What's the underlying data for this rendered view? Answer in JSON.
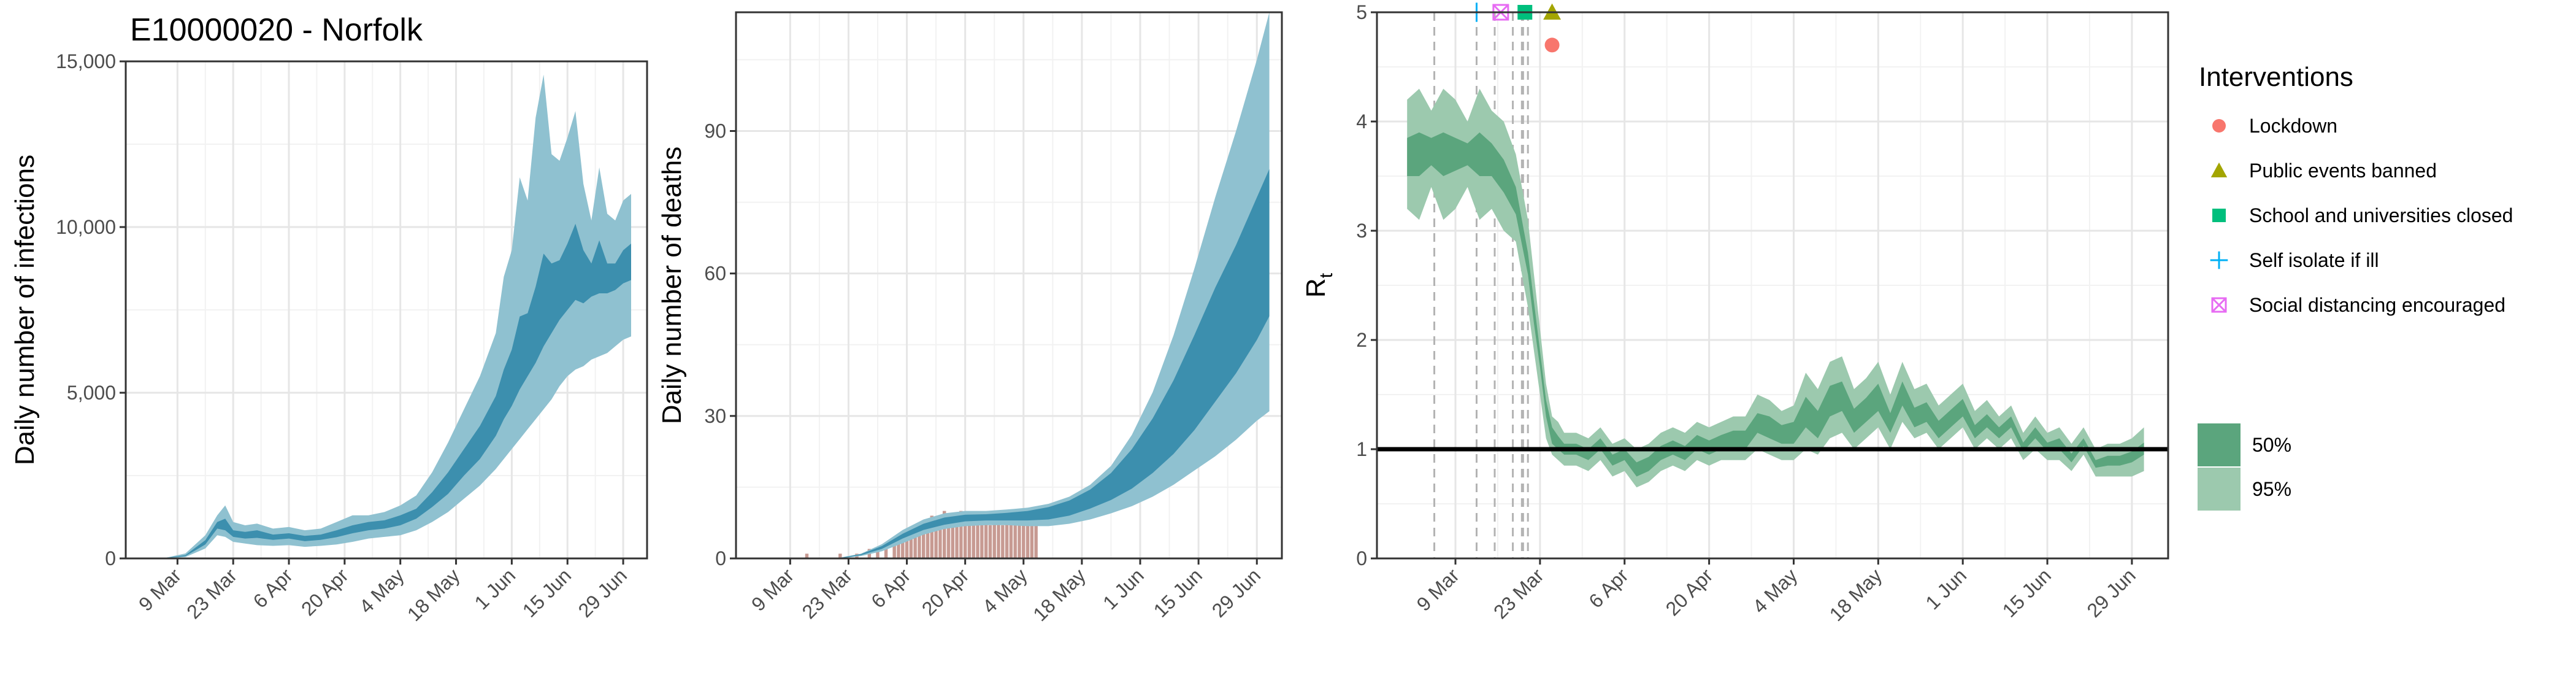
{
  "figure": {
    "title": "E10000020 - Norfolk"
  },
  "x_ticks": [
    "9 Mar",
    "23 Mar",
    "6 Apr",
    "20 Apr",
    "4 May",
    "18 May",
    "1 Jun",
    "15 Jun",
    "29 Jun"
  ],
  "x_tick_days": [
    8,
    22,
    36,
    50,
    64,
    78,
    92,
    106,
    120
  ],
  "colors": {
    "infections_band95": "#8FC1D0",
    "infections_band50": "#3C8FAE",
    "deaths_band95": "#8FC1D0",
    "deaths_band50": "#3C8FAE",
    "deaths_bars": "#C79A92",
    "rt_band95": "#9CC9AE",
    "rt_band50": "#5BA57D",
    "lockdown": "#F8766D",
    "public_events_banned": "#A3A500",
    "school_closed": "#00BF7D",
    "self_isolate": "#00B0F6",
    "social_distancing": "#E76BF3"
  },
  "chart_data": [
    {
      "type": "area",
      "ylabel": "Daily number of infections",
      "ylim": [
        0,
        15000
      ],
      "yticks": [
        0,
        5000,
        10000,
        15000
      ],
      "ytick_labels": [
        "0",
        "5,000",
        "10,000",
        "15,000"
      ],
      "x_range_days": [
        -5,
        126
      ],
      "series": [
        {
          "name": "95%",
          "x": [
            0,
            5,
            10,
            15,
            18,
            20,
            22,
            25,
            28,
            32,
            36,
            40,
            44,
            48,
            52,
            56,
            60,
            64,
            68,
            72,
            76,
            80,
            84,
            88,
            90,
            92,
            94,
            96,
            98,
            100,
            102,
            104,
            106,
            108,
            110,
            112,
            114,
            116,
            118,
            120,
            122
          ],
          "lower": [
            0,
            5,
            40,
            300,
            700,
            650,
            500,
            450,
            400,
            380,
            400,
            350,
            380,
            420,
            500,
            600,
            650,
            700,
            850,
            1100,
            1400,
            1800,
            2200,
            2700,
            3000,
            3300,
            3600,
            3900,
            4200,
            4500,
            4800,
            5200,
            5500,
            5700,
            5800,
            6000,
            6100,
            6200,
            6400,
            6600,
            6700
          ],
          "upper": [
            0,
            20,
            150,
            700,
            1300,
            1600,
            1100,
            1000,
            1050,
            900,
            950,
            850,
            900,
            1100,
            1300,
            1300,
            1400,
            1600,
            1900,
            2600,
            3500,
            4500,
            5500,
            6800,
            8500,
            9300,
            11500,
            10800,
            13300,
            14600,
            12200,
            12000,
            12700,
            13500,
            11300,
            10200,
            11800,
            10400,
            10200,
            10800,
            11000
          ]
        },
        {
          "name": "50%",
          "x": [
            0,
            5,
            10,
            15,
            18,
            20,
            22,
            25,
            28,
            32,
            36,
            40,
            44,
            48,
            52,
            56,
            60,
            64,
            68,
            72,
            76,
            80,
            84,
            88,
            90,
            92,
            94,
            96,
            98,
            100,
            102,
            104,
            106,
            108,
            110,
            112,
            114,
            116,
            118,
            120,
            122
          ],
          "lower": [
            0,
            8,
            70,
            420,
            900,
            850,
            650,
            600,
            620,
            560,
            600,
            520,
            560,
            640,
            760,
            850,
            900,
            1000,
            1200,
            1550,
            1950,
            2500,
            3000,
            3700,
            4200,
            4600,
            5100,
            5500,
            5900,
            6400,
            6800,
            7200,
            7500,
            7800,
            7700,
            7900,
            8000,
            8000,
            8100,
            8300,
            8400
          ],
          "upper": [
            0,
            12,
            100,
            550,
            1100,
            1200,
            850,
            800,
            850,
            720,
            760,
            680,
            720,
            850,
            1000,
            1100,
            1150,
            1300,
            1500,
            2000,
            2600,
            3300,
            4000,
            4900,
            5700,
            6300,
            7300,
            7400,
            8200,
            9200,
            8900,
            9000,
            9500,
            10100,
            9300,
            8900,
            9600,
            8900,
            8900,
            9300,
            9500
          ]
        }
      ]
    },
    {
      "type": "area",
      "ylabel": "Daily number of deaths",
      "ylim": [
        0,
        115
      ],
      "yticks": [
        0,
        30,
        60,
        90
      ],
      "ytick_labels": [
        "0",
        "30",
        "60",
        "90"
      ],
      "x_range_days": [
        -5,
        126
      ],
      "bars": {
        "x": [
          12,
          20,
          24,
          27,
          29,
          31,
          33,
          34,
          35,
          36,
          37,
          38,
          39,
          40,
          41,
          42,
          43,
          44,
          45,
          46,
          47,
          48,
          49,
          50,
          51,
          52,
          53,
          54,
          55,
          56,
          57,
          58,
          59,
          60,
          61,
          62,
          63,
          64,
          65,
          66,
          67
        ],
        "values": [
          1,
          1,
          1,
          2,
          2,
          3,
          3,
          4,
          5,
          6,
          5,
          7,
          6,
          8,
          7,
          9,
          8,
          7,
          10,
          9,
          8,
          9,
          10,
          8,
          9,
          7,
          8,
          9,
          8,
          7,
          9,
          8,
          7,
          8,
          9,
          7,
          8,
          8,
          9,
          7,
          8
        ]
      },
      "series": [
        {
          "name": "95%",
          "x": [
            0,
            10,
            20,
            25,
            30,
            35,
            40,
            45,
            50,
            55,
            60,
            65,
            70,
            75,
            80,
            85,
            90,
            95,
            100,
            105,
            110,
            115,
            120,
            123
          ],
          "lower": [
            0,
            0,
            0,
            0.5,
            1.5,
            3.2,
            5,
            6.2,
            6.8,
            7,
            7,
            6.8,
            6.8,
            7.3,
            8.2,
            9.5,
            11,
            13,
            15.5,
            18.5,
            21.5,
            25,
            29,
            31
          ],
          "upper": [
            0,
            0,
            0.2,
            1,
            3,
            6,
            8.2,
            9.5,
            10,
            10,
            10.3,
            10.7,
            11.5,
            13,
            15.5,
            19.5,
            26,
            35,
            47,
            61,
            76,
            90,
            105,
            115
          ]
        },
        {
          "name": "50%",
          "x": [
            0,
            10,
            20,
            25,
            30,
            35,
            40,
            45,
            50,
            55,
            60,
            65,
            70,
            75,
            80,
            85,
            90,
            95,
            100,
            105,
            110,
            115,
            120,
            123
          ],
          "lower": [
            0,
            0,
            0,
            0.7,
            2,
            4.2,
            6,
            7.1,
            7.8,
            8,
            8,
            8,
            8.2,
            9,
            10.5,
            12.3,
            14.7,
            18,
            22,
            27,
            33,
            39,
            46,
            51
          ],
          "upper": [
            0,
            0,
            0.1,
            0.9,
            2.6,
            5.2,
            7.3,
            8.6,
            9.2,
            9.3,
            9.6,
            10,
            10.8,
            12.2,
            14.5,
            18,
            23,
            29.5,
            37.5,
            47,
            57,
            66,
            76,
            82
          ]
        }
      ]
    },
    {
      "type": "area",
      "ylabel": "R",
      "ylabel_subscript": "t",
      "ylim": [
        0,
        5
      ],
      "yticks": [
        0,
        1,
        2,
        3,
        4,
        5
      ],
      "ytick_labels": [
        "0",
        "1",
        "2",
        "3",
        "4",
        "5"
      ],
      "x_range_days": [
        -5,
        126
      ],
      "reference_line": 1,
      "intervention_days": [
        4.5,
        11.5,
        14.5,
        17.5,
        19,
        19.2,
        20
      ],
      "markers": [
        {
          "name": "Self isolate if ill",
          "x": 11.5,
          "y": 5.0,
          "shape": "plus"
        },
        {
          "name": "Social distancing encouraged",
          "x": 15.5,
          "y": 5.0,
          "shape": "square-x"
        },
        {
          "name": "School and universities closed",
          "x": 19.5,
          "y": 5.0,
          "shape": "square"
        },
        {
          "name": "Public events banned",
          "x": 24,
          "y": 5.0,
          "shape": "triangle"
        },
        {
          "name": "Lockdown",
          "x": 24,
          "y": 4.7,
          "shape": "circle"
        }
      ],
      "series": [
        {
          "name": "95%",
          "x": [
            0,
            2,
            4,
            6,
            8,
            10,
            12,
            14,
            16,
            18,
            20,
            21,
            22,
            23,
            24,
            25,
            26,
            28,
            30,
            32,
            34,
            36,
            38,
            40,
            42,
            44,
            46,
            48,
            50,
            52,
            54,
            56,
            58,
            60,
            62,
            64,
            66,
            68,
            70,
            72,
            74,
            76,
            78,
            80,
            82,
            84,
            86,
            88,
            90,
            92,
            94,
            96,
            98,
            100,
            102,
            104,
            106,
            108,
            110,
            112,
            114,
            116,
            118,
            120,
            122
          ],
          "lower": [
            3.2,
            3.1,
            3.4,
            3.1,
            3.2,
            3.4,
            3.1,
            3.2,
            3.0,
            2.9,
            2.3,
            1.9,
            1.5,
            1.1,
            0.95,
            0.9,
            0.85,
            0.85,
            0.8,
            0.9,
            0.75,
            0.8,
            0.65,
            0.7,
            0.8,
            0.85,
            0.8,
            0.9,
            0.85,
            0.9,
            0.9,
            0.9,
            1.0,
            0.95,
            0.9,
            0.9,
            1.0,
            0.95,
            1.1,
            1.15,
            1.0,
            1.1,
            1.2,
            1.0,
            1.25,
            1.1,
            1.15,
            1.0,
            1.1,
            1.2,
            1.0,
            1.1,
            1.0,
            1.1,
            0.9,
            1.0,
            0.9,
            0.9,
            0.8,
            0.95,
            0.75,
            0.75,
            0.75,
            0.75,
            0.8
          ],
          "upper": [
            4.2,
            4.3,
            4.1,
            4.3,
            4.2,
            4.0,
            4.3,
            4.1,
            4.0,
            3.7,
            3.1,
            2.6,
            2.1,
            1.6,
            1.3,
            1.25,
            1.15,
            1.15,
            1.1,
            1.2,
            1.05,
            1.1,
            1.0,
            1.05,
            1.15,
            1.2,
            1.15,
            1.25,
            1.2,
            1.25,
            1.3,
            1.3,
            1.5,
            1.45,
            1.35,
            1.4,
            1.7,
            1.55,
            1.8,
            1.85,
            1.55,
            1.65,
            1.8,
            1.5,
            1.8,
            1.55,
            1.6,
            1.4,
            1.5,
            1.6,
            1.35,
            1.45,
            1.3,
            1.4,
            1.15,
            1.3,
            1.15,
            1.2,
            1.05,
            1.2,
            1.0,
            1.05,
            1.05,
            1.1,
            1.2
          ]
        },
        {
          "name": "50%",
          "x": [
            0,
            2,
            4,
            6,
            8,
            10,
            12,
            14,
            16,
            18,
            20,
            21,
            22,
            23,
            24,
            25,
            26,
            28,
            30,
            32,
            34,
            36,
            38,
            40,
            42,
            44,
            46,
            48,
            50,
            52,
            54,
            56,
            58,
            60,
            62,
            64,
            66,
            68,
            70,
            72,
            74,
            76,
            78,
            80,
            82,
            84,
            86,
            88,
            90,
            92,
            94,
            96,
            98,
            100,
            102,
            104,
            106,
            108,
            110,
            112,
            114,
            116,
            118,
            120,
            122
          ],
          "lower": [
            3.5,
            3.5,
            3.6,
            3.5,
            3.55,
            3.6,
            3.5,
            3.5,
            3.35,
            3.15,
            2.6,
            2.15,
            1.75,
            1.3,
            1.05,
            1.0,
            0.95,
            0.95,
            0.9,
            1.0,
            0.85,
            0.9,
            0.75,
            0.8,
            0.9,
            0.95,
            0.9,
            1.0,
            0.95,
            1.0,
            1.0,
            1.0,
            1.15,
            1.1,
            1.05,
            1.05,
            1.2,
            1.1,
            1.3,
            1.35,
            1.15,
            1.25,
            1.35,
            1.15,
            1.4,
            1.2,
            1.25,
            1.1,
            1.2,
            1.3,
            1.1,
            1.2,
            1.1,
            1.2,
            0.98,
            1.1,
            0.98,
            1.0,
            0.88,
            1.03,
            0.83,
            0.85,
            0.85,
            0.88,
            0.95
          ],
          "upper": [
            3.85,
            3.9,
            3.85,
            3.9,
            3.85,
            3.8,
            3.9,
            3.8,
            3.65,
            3.4,
            2.8,
            2.35,
            1.9,
            1.45,
            1.2,
            1.12,
            1.05,
            1.05,
            1.0,
            1.1,
            0.95,
            1.0,
            0.88,
            0.93,
            1.03,
            1.08,
            1.03,
            1.13,
            1.08,
            1.13,
            1.17,
            1.17,
            1.33,
            1.3,
            1.22,
            1.25,
            1.48,
            1.35,
            1.58,
            1.62,
            1.37,
            1.47,
            1.6,
            1.33,
            1.62,
            1.38,
            1.43,
            1.26,
            1.36,
            1.46,
            1.22,
            1.32,
            1.2,
            1.3,
            1.06,
            1.2,
            1.06,
            1.1,
            0.96,
            1.1,
            0.9,
            0.94,
            0.94,
            0.98,
            1.06
          ]
        }
      ]
    }
  ],
  "legend": {
    "interventions_title": "Interventions",
    "interventions": [
      {
        "label": "Lockdown",
        "shape": "circle",
        "color_key": "lockdown"
      },
      {
        "label": "Public events banned",
        "shape": "triangle",
        "color_key": "public_events_banned"
      },
      {
        "label": "School and universities closed",
        "shape": "square",
        "color_key": "school_closed"
      },
      {
        "label": "Self isolate if ill",
        "shape": "plus",
        "color_key": "self_isolate"
      },
      {
        "label": "Social distancing encouraged",
        "shape": "square-x",
        "color_key": "social_distancing"
      }
    ],
    "bands": [
      {
        "label": "50%",
        "color_key": "rt_band50"
      },
      {
        "label": "95%",
        "color_key": "rt_band95"
      }
    ]
  }
}
